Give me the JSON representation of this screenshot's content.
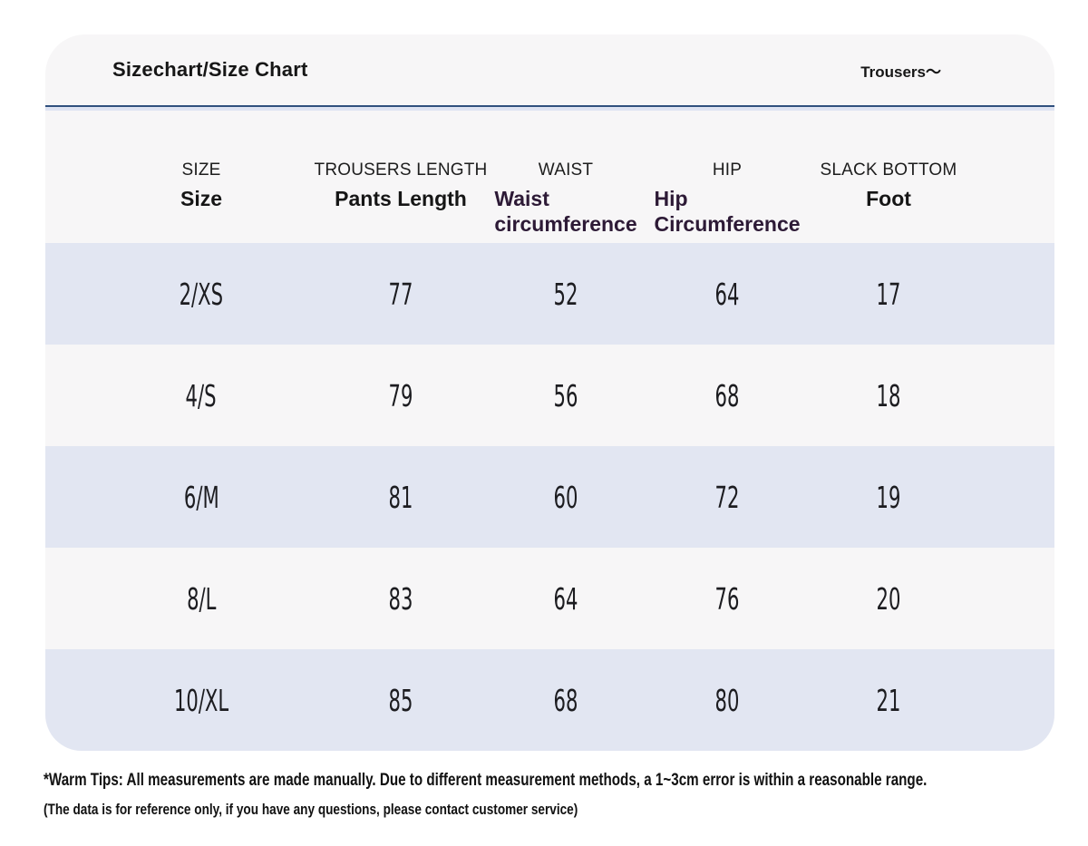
{
  "colors": {
    "card_bg": "#f7f6f7",
    "row_alt": "#e2e6f2",
    "divider": "#30507e",
    "text": "#161616",
    "accent_purple": "#2d1a36"
  },
  "card": {
    "header": {
      "title": "Sizechart/Size Chart",
      "category_label": "Trousers～"
    },
    "table": {
      "columns": [
        {
          "key": "size",
          "label_top": "SIZE",
          "label_main": "Size"
        },
        {
          "key": "pants-length",
          "label_top": "TROUSERS LENGTH",
          "label_main": "Pants Length"
        },
        {
          "key": "waist",
          "label_top": "WAIST",
          "label_main": "Waist\ncircumference"
        },
        {
          "key": "hip",
          "label_top": "HIP",
          "label_main": "Hip\nCircumference"
        },
        {
          "key": "foot",
          "label_top": "SLACK BOTTOM",
          "label_main": "Foot"
        }
      ],
      "rows": [
        {
          "values": [
            "2/XS",
            "77",
            "52",
            "64",
            "17"
          ]
        },
        {
          "values": [
            "4/S",
            "79",
            "56",
            "68",
            "18"
          ]
        },
        {
          "values": [
            "6/M",
            "81",
            "60",
            "72",
            "19"
          ]
        },
        {
          "values": [
            "8/L",
            "83",
            "64",
            "76",
            "20"
          ]
        },
        {
          "values": [
            "10/XL",
            "85",
            "68",
            "80",
            "21"
          ]
        }
      ]
    },
    "footnote": {
      "line1": "*Warm Tips: All measurements are made manually. Due to different measurement methods, a 1~3cm error is within a reasonable range.",
      "line2": "(The data is for reference only, if you have any questions, please contact customer service)"
    }
  }
}
